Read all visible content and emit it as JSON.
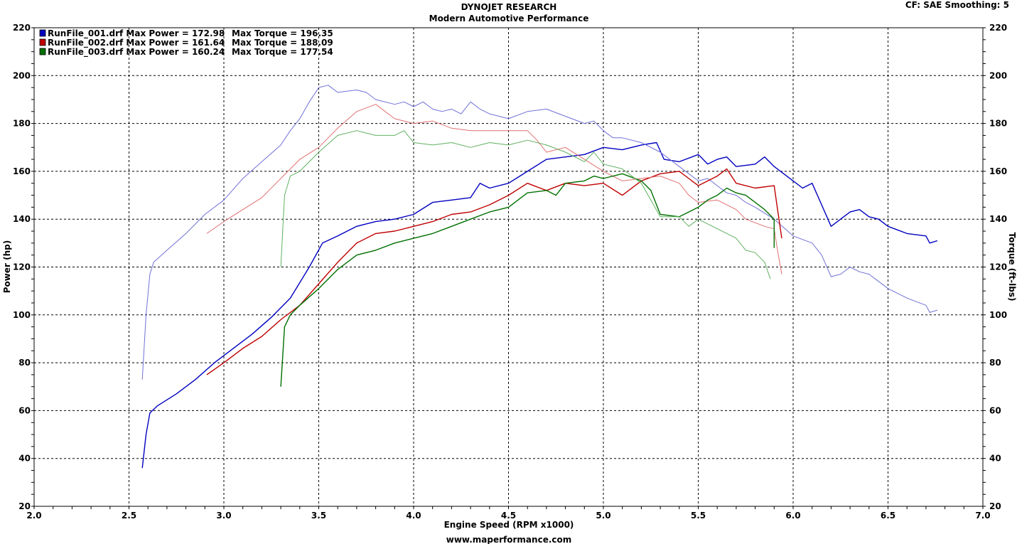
{
  "header": {
    "title": "DYNOJET RESEARCH",
    "subtitle": "Modern Automotive Performance",
    "settings": "CF: SAE  Smoothing: 5",
    "footer": "www.maperformance.com"
  },
  "chart_data": {
    "type": "line",
    "xlabel": "Engine Speed (RPM x1000)",
    "ylabel": "Power (hp)",
    "ylabel_right": "Torque (ft-lbs)",
    "xlim": [
      2.0,
      7.0
    ],
    "ylim": [
      20,
      220
    ],
    "xticks": [
      2.0,
      2.5,
      3.0,
      3.5,
      4.0,
      4.5,
      5.0,
      5.5,
      6.0,
      6.5,
      7.0
    ],
    "yticks": [
      20,
      40,
      60,
      80,
      100,
      120,
      140,
      160,
      180,
      200,
      220
    ],
    "grid": true,
    "legend_position": "top-left",
    "legend": [
      {
        "file": "RunFile_001.drf",
        "power_label": "Max Power = 172.98",
        "torque_label": "Max Torque = 196.35",
        "color": "#0000c0"
      },
      {
        "file": "RunFile_002.drf",
        "power_label": "Max Power = 161.64",
        "torque_label": "Max Torque = 188.09",
        "color": "#c00000"
      },
      {
        "file": "RunFile_003.drf",
        "power_label": "Max Power = 160.24",
        "torque_label": "Max Torque = 177.54",
        "color": "#007000"
      }
    ],
    "series": [
      {
        "name": "RunFile_001.drf",
        "kind": "power",
        "color": "#0000c0",
        "points": [
          [
            2.57,
            36
          ],
          [
            2.59,
            50
          ],
          [
            2.61,
            59
          ],
          [
            2.65,
            62
          ],
          [
            2.75,
            67
          ],
          [
            2.85,
            73
          ],
          [
            2.95,
            80
          ],
          [
            3.05,
            86
          ],
          [
            3.15,
            92
          ],
          [
            3.25,
            99
          ],
          [
            3.35,
            107
          ],
          [
            3.45,
            120
          ],
          [
            3.52,
            130
          ],
          [
            3.6,
            133
          ],
          [
            3.7,
            137
          ],
          [
            3.8,
            139
          ],
          [
            3.9,
            140
          ],
          [
            4.0,
            142
          ],
          [
            4.1,
            147
          ],
          [
            4.2,
            148
          ],
          [
            4.3,
            149
          ],
          [
            4.35,
            155
          ],
          [
            4.4,
            153
          ],
          [
            4.5,
            155
          ],
          [
            4.6,
            160
          ],
          [
            4.7,
            165
          ],
          [
            4.8,
            166
          ],
          [
            4.9,
            167
          ],
          [
            5.0,
            170
          ],
          [
            5.1,
            169
          ],
          [
            5.2,
            171
          ],
          [
            5.28,
            172
          ],
          [
            5.32,
            165
          ],
          [
            5.4,
            164
          ],
          [
            5.5,
            167
          ],
          [
            5.55,
            163
          ],
          [
            5.6,
            165
          ],
          [
            5.65,
            166
          ],
          [
            5.7,
            162
          ],
          [
            5.8,
            163
          ],
          [
            5.85,
            166
          ],
          [
            5.9,
            162
          ],
          [
            5.95,
            159
          ],
          [
            6.05,
            153
          ],
          [
            6.1,
            155
          ],
          [
            6.15,
            146
          ],
          [
            6.2,
            137
          ],
          [
            6.3,
            143
          ],
          [
            6.35,
            144
          ],
          [
            6.4,
            141
          ],
          [
            6.45,
            140
          ],
          [
            6.5,
            137
          ],
          [
            6.6,
            134
          ],
          [
            6.7,
            133
          ],
          [
            6.72,
            130
          ],
          [
            6.76,
            131
          ]
        ]
      },
      {
        "name": "RunFile_001.drf",
        "kind": "torque",
        "color": "#7070d8",
        "points": [
          [
            2.57,
            73
          ],
          [
            2.59,
            100
          ],
          [
            2.61,
            117
          ],
          [
            2.63,
            122
          ],
          [
            2.7,
            127
          ],
          [
            2.8,
            134
          ],
          [
            2.9,
            142
          ],
          [
            3.0,
            148
          ],
          [
            3.1,
            157
          ],
          [
            3.2,
            164
          ],
          [
            3.3,
            171
          ],
          [
            3.35,
            177
          ],
          [
            3.4,
            182
          ],
          [
            3.45,
            189
          ],
          [
            3.5,
            195
          ],
          [
            3.55,
            196
          ],
          [
            3.6,
            193
          ],
          [
            3.7,
            194
          ],
          [
            3.75,
            193
          ],
          [
            3.8,
            190
          ],
          [
            3.9,
            188
          ],
          [
            3.95,
            189
          ],
          [
            4.0,
            187
          ],
          [
            4.05,
            189
          ],
          [
            4.1,
            186
          ],
          [
            4.15,
            185
          ],
          [
            4.2,
            186
          ],
          [
            4.25,
            184
          ],
          [
            4.3,
            189
          ],
          [
            4.35,
            186
          ],
          [
            4.4,
            184
          ],
          [
            4.5,
            182
          ],
          [
            4.6,
            185
          ],
          [
            4.7,
            186
          ],
          [
            4.8,
            183
          ],
          [
            4.9,
            180
          ],
          [
            4.95,
            181
          ],
          [
            5.0,
            177
          ],
          [
            5.05,
            174
          ],
          [
            5.1,
            174
          ],
          [
            5.2,
            172
          ],
          [
            5.3,
            168
          ],
          [
            5.4,
            162
          ],
          [
            5.5,
            156
          ],
          [
            5.55,
            157
          ],
          [
            5.6,
            154
          ],
          [
            5.65,
            151
          ],
          [
            5.7,
            150
          ],
          [
            5.75,
            147
          ],
          [
            5.8,
            145
          ],
          [
            5.9,
            140
          ],
          [
            6.0,
            133
          ],
          [
            6.1,
            130
          ],
          [
            6.15,
            125
          ],
          [
            6.2,
            116
          ],
          [
            6.25,
            117
          ],
          [
            6.3,
            120
          ],
          [
            6.35,
            118
          ],
          [
            6.4,
            117
          ],
          [
            6.45,
            114
          ],
          [
            6.5,
            111
          ],
          [
            6.6,
            107
          ],
          [
            6.7,
            104
          ],
          [
            6.72,
            101
          ],
          [
            6.76,
            102
          ]
        ]
      },
      {
        "name": "RunFile_002.drf",
        "kind": "power",
        "color": "#c00000",
        "points": [
          [
            2.91,
            75
          ],
          [
            3.0,
            80
          ],
          [
            3.1,
            86
          ],
          [
            3.2,
            91
          ],
          [
            3.3,
            98
          ],
          [
            3.4,
            104
          ],
          [
            3.5,
            113
          ],
          [
            3.6,
            122
          ],
          [
            3.7,
            130
          ],
          [
            3.8,
            134
          ],
          [
            3.9,
            135
          ],
          [
            4.0,
            137
          ],
          [
            4.1,
            139
          ],
          [
            4.2,
            142
          ],
          [
            4.3,
            143
          ],
          [
            4.4,
            146
          ],
          [
            4.5,
            150
          ],
          [
            4.6,
            155
          ],
          [
            4.7,
            152
          ],
          [
            4.8,
            155
          ],
          [
            4.9,
            154
          ],
          [
            5.0,
            155
          ],
          [
            5.1,
            150
          ],
          [
            5.2,
            156
          ],
          [
            5.3,
            159
          ],
          [
            5.4,
            160
          ],
          [
            5.45,
            157
          ],
          [
            5.5,
            154
          ],
          [
            5.55,
            156
          ],
          [
            5.6,
            158
          ],
          [
            5.65,
            161
          ],
          [
            5.7,
            155
          ],
          [
            5.8,
            153
          ],
          [
            5.9,
            154
          ],
          [
            5.92,
            143
          ],
          [
            5.94,
            132
          ]
        ]
      },
      {
        "name": "RunFile_002.drf",
        "kind": "torque",
        "color": "#e07070",
        "points": [
          [
            2.91,
            134
          ],
          [
            3.0,
            139
          ],
          [
            3.1,
            144
          ],
          [
            3.2,
            149
          ],
          [
            3.3,
            157
          ],
          [
            3.4,
            165
          ],
          [
            3.5,
            170
          ],
          [
            3.6,
            178
          ],
          [
            3.7,
            185
          ],
          [
            3.8,
            188
          ],
          [
            3.9,
            182
          ],
          [
            4.0,
            180
          ],
          [
            4.1,
            181
          ],
          [
            4.2,
            178
          ],
          [
            4.3,
            177
          ],
          [
            4.4,
            177
          ],
          [
            4.5,
            177
          ],
          [
            4.6,
            177
          ],
          [
            4.65,
            173
          ],
          [
            4.7,
            168
          ],
          [
            4.8,
            170
          ],
          [
            4.9,
            165
          ],
          [
            5.0,
            160
          ],
          [
            5.1,
            156
          ],
          [
            5.2,
            157
          ],
          [
            5.3,
            158
          ],
          [
            5.4,
            155
          ],
          [
            5.45,
            150
          ],
          [
            5.5,
            147
          ],
          [
            5.6,
            148
          ],
          [
            5.7,
            144
          ],
          [
            5.75,
            140
          ],
          [
            5.85,
            137
          ],
          [
            5.9,
            136
          ],
          [
            5.92,
            126
          ],
          [
            5.94,
            117
          ]
        ]
      },
      {
        "name": "RunFile_003.drf",
        "kind": "power",
        "color": "#007000",
        "points": [
          [
            3.3,
            70
          ],
          [
            3.32,
            95
          ],
          [
            3.35,
            100
          ],
          [
            3.4,
            104
          ],
          [
            3.5,
            111
          ],
          [
            3.6,
            119
          ],
          [
            3.7,
            125
          ],
          [
            3.8,
            127
          ],
          [
            3.9,
            130
          ],
          [
            4.0,
            132
          ],
          [
            4.1,
            134
          ],
          [
            4.2,
            137
          ],
          [
            4.3,
            140
          ],
          [
            4.4,
            143
          ],
          [
            4.5,
            145
          ],
          [
            4.6,
            151
          ],
          [
            4.7,
            152
          ],
          [
            4.75,
            150
          ],
          [
            4.8,
            155
          ],
          [
            4.9,
            156
          ],
          [
            4.95,
            158
          ],
          [
            5.0,
            157
          ],
          [
            5.1,
            159
          ],
          [
            5.2,
            156
          ],
          [
            5.25,
            152
          ],
          [
            5.3,
            142
          ],
          [
            5.4,
            141
          ],
          [
            5.45,
            143
          ],
          [
            5.5,
            145
          ],
          [
            5.55,
            148
          ],
          [
            5.6,
            150
          ],
          [
            5.65,
            153
          ],
          [
            5.7,
            151
          ],
          [
            5.75,
            150
          ],
          [
            5.8,
            147
          ],
          [
            5.85,
            144
          ],
          [
            5.9,
            140
          ],
          [
            5.9,
            128
          ]
        ]
      },
      {
        "name": "RunFile_003.drf",
        "kind": "torque",
        "color": "#60b060",
        "points": [
          [
            3.3,
            120
          ],
          [
            3.32,
            150
          ],
          [
            3.35,
            158
          ],
          [
            3.4,
            160
          ],
          [
            3.5,
            168
          ],
          [
            3.6,
            175
          ],
          [
            3.7,
            177
          ],
          [
            3.8,
            175
          ],
          [
            3.9,
            175
          ],
          [
            3.95,
            177
          ],
          [
            4.0,
            172
          ],
          [
            4.1,
            171
          ],
          [
            4.2,
            172
          ],
          [
            4.3,
            170
          ],
          [
            4.4,
            172
          ],
          [
            4.5,
            171
          ],
          [
            4.6,
            173
          ],
          [
            4.7,
            171
          ],
          [
            4.8,
            168
          ],
          [
            4.9,
            164
          ],
          [
            4.95,
            168
          ],
          [
            5.0,
            163
          ],
          [
            5.1,
            161
          ],
          [
            5.2,
            155
          ],
          [
            5.25,
            148
          ],
          [
            5.3,
            141
          ],
          [
            5.4,
            141
          ],
          [
            5.45,
            137
          ],
          [
            5.5,
            140
          ],
          [
            5.6,
            136
          ],
          [
            5.7,
            132
          ],
          [
            5.75,
            127
          ],
          [
            5.8,
            126
          ],
          [
            5.85,
            122
          ],
          [
            5.88,
            115
          ]
        ]
      }
    ]
  }
}
